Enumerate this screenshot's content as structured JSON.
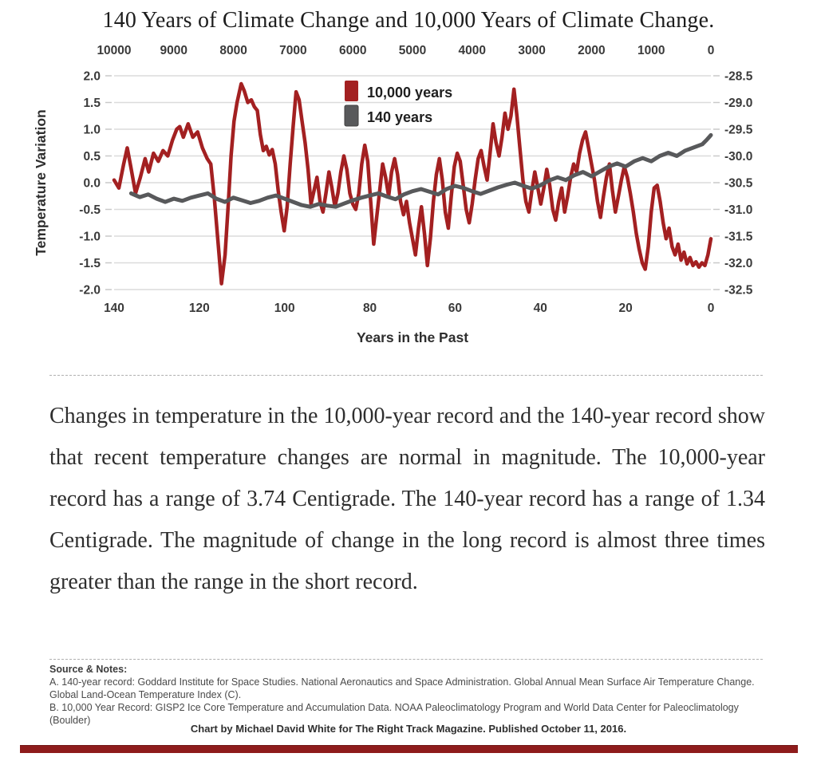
{
  "title": "140 Years of Climate Change and 10,000 Years of Climate Change.",
  "chart_data": {
    "type": "line",
    "top_axis_ticks": [
      "10000",
      "9000",
      "8000",
      "7000",
      "6000",
      "5000",
      "4000",
      "3000",
      "2000",
      "1000",
      "0"
    ],
    "bottom_axis_ticks": [
      "140",
      "120",
      "100",
      "80",
      "60",
      "40",
      "20",
      "0"
    ],
    "left_axis": {
      "title": "Temperature Variation",
      "ticks": [
        "2.0",
        "1.5",
        "1.0",
        "0.5",
        "0.0",
        "-0.5",
        "-1.0",
        "-1.5",
        "-2.0"
      ],
      "ylim": [
        -2.0,
        2.0
      ]
    },
    "right_axis": {
      "ticks": [
        "-28.5",
        "-29.0",
        "-29.5",
        "-30.0",
        "-30.5",
        "-31.0",
        "-31.5",
        "-32.0",
        "-32.5"
      ],
      "ylim": [
        -32.5,
        -28.5
      ]
    },
    "xlabel": "Years in the Past",
    "grid": "horizontal",
    "legend_position": "top-center-inside",
    "legend": [
      {
        "label": "10,000 years",
        "color": "#A32021"
      },
      {
        "label": "140 years",
        "color": "#58595B"
      }
    ],
    "series": [
      {
        "name": "10,000 years",
        "color": "#A32021",
        "stroke_width": 4.5,
        "axis": "top",
        "domain": [
          10000,
          0
        ],
        "points": [
          [
            10000,
            0.05
          ],
          [
            9920,
            -0.1
          ],
          [
            9840,
            0.35
          ],
          [
            9780,
            0.65
          ],
          [
            9720,
            0.3
          ],
          [
            9640,
            -0.2
          ],
          [
            9560,
            0.1
          ],
          [
            9480,
            0.45
          ],
          [
            9420,
            0.2
          ],
          [
            9340,
            0.55
          ],
          [
            9260,
            0.4
          ],
          [
            9180,
            0.6
          ],
          [
            9100,
            0.5
          ],
          [
            9020,
            0.8
          ],
          [
            8950,
            1.0
          ],
          [
            8900,
            1.05
          ],
          [
            8840,
            0.85
          ],
          [
            8760,
            1.1
          ],
          [
            8680,
            0.85
          ],
          [
            8600,
            0.95
          ],
          [
            8520,
            0.65
          ],
          [
            8440,
            0.45
          ],
          [
            8380,
            0.35
          ],
          [
            8320,
            -0.3
          ],
          [
            8260,
            -1.1
          ],
          [
            8200,
            -1.89
          ],
          [
            8140,
            -1.35
          ],
          [
            8090,
            -0.45
          ],
          [
            8040,
            0.5
          ],
          [
            7990,
            1.15
          ],
          [
            7940,
            1.5
          ],
          [
            7870,
            1.85
          ],
          [
            7820,
            1.72
          ],
          [
            7760,
            1.5
          ],
          [
            7700,
            1.55
          ],
          [
            7650,
            1.42
          ],
          [
            7600,
            1.35
          ],
          [
            7550,
            0.9
          ],
          [
            7500,
            0.6
          ],
          [
            7450,
            0.68
          ],
          [
            7400,
            0.52
          ],
          [
            7350,
            0.62
          ],
          [
            7300,
            0.35
          ],
          [
            7250,
            -0.15
          ],
          [
            7200,
            -0.55
          ],
          [
            7150,
            -0.9
          ],
          [
            7100,
            -0.45
          ],
          [
            7050,
            0.35
          ],
          [
            7000,
            1.05
          ],
          [
            6950,
            1.7
          ],
          [
            6900,
            1.55
          ],
          [
            6850,
            1.15
          ],
          [
            6800,
            0.75
          ],
          [
            6750,
            0.25
          ],
          [
            6700,
            -0.4
          ],
          [
            6650,
            -0.15
          ],
          [
            6600,
            0.1
          ],
          [
            6550,
            -0.35
          ],
          [
            6500,
            -0.55
          ],
          [
            6450,
            -0.2
          ],
          [
            6400,
            0.2
          ],
          [
            6350,
            -0.1
          ],
          [
            6300,
            -0.45
          ],
          [
            6250,
            -0.2
          ],
          [
            6200,
            0.2
          ],
          [
            6150,
            0.5
          ],
          [
            6100,
            0.25
          ],
          [
            6050,
            -0.2
          ],
          [
            6000,
            -0.4
          ],
          [
            5950,
            -0.5
          ],
          [
            5900,
            -0.2
          ],
          [
            5850,
            0.35
          ],
          [
            5800,
            0.7
          ],
          [
            5750,
            0.4
          ],
          [
            5700,
            -0.35
          ],
          [
            5650,
            -1.15
          ],
          [
            5600,
            -0.65
          ],
          [
            5550,
            -0.15
          ],
          [
            5500,
            0.35
          ],
          [
            5450,
            0.1
          ],
          [
            5400,
            -0.25
          ],
          [
            5350,
            0.2
          ],
          [
            5300,
            0.45
          ],
          [
            5250,
            0.15
          ],
          [
            5200,
            -0.35
          ],
          [
            5150,
            -0.6
          ],
          [
            5100,
            -0.35
          ],
          [
            5050,
            -0.75
          ],
          [
            5000,
            -1.05
          ],
          [
            4950,
            -1.35
          ],
          [
            4900,
            -0.85
          ],
          [
            4850,
            -0.45
          ],
          [
            4800,
            -0.95
          ],
          [
            4750,
            -1.55
          ],
          [
            4700,
            -1.05
          ],
          [
            4650,
            -0.35
          ],
          [
            4600,
            0.15
          ],
          [
            4550,
            0.45
          ],
          [
            4500,
            0.05
          ],
          [
            4450,
            -0.55
          ],
          [
            4400,
            -0.85
          ],
          [
            4350,
            -0.25
          ],
          [
            4300,
            0.3
          ],
          [
            4250,
            0.55
          ],
          [
            4200,
            0.4
          ],
          [
            4150,
            -0.05
          ],
          [
            4100,
            -0.5
          ],
          [
            4050,
            -0.75
          ],
          [
            4000,
            -0.4
          ],
          [
            3950,
            0.05
          ],
          [
            3900,
            0.45
          ],
          [
            3850,
            0.6
          ],
          [
            3800,
            0.3
          ],
          [
            3750,
            0.05
          ],
          [
            3700,
            0.55
          ],
          [
            3650,
            1.1
          ],
          [
            3600,
            0.75
          ],
          [
            3550,
            0.5
          ],
          [
            3500,
            0.85
          ],
          [
            3450,
            1.3
          ],
          [
            3400,
            1.0
          ],
          [
            3350,
            1.25
          ],
          [
            3300,
            1.75
          ],
          [
            3250,
            1.25
          ],
          [
            3200,
            0.65
          ],
          [
            3150,
            0.05
          ],
          [
            3100,
            -0.35
          ],
          [
            3050,
            -0.55
          ],
          [
            3000,
            -0.15
          ],
          [
            2950,
            0.2
          ],
          [
            2900,
            -0.1
          ],
          [
            2850,
            -0.4
          ],
          [
            2800,
            -0.1
          ],
          [
            2750,
            0.25
          ],
          [
            2700,
            -0.05
          ],
          [
            2650,
            -0.5
          ],
          [
            2600,
            -0.7
          ],
          [
            2550,
            -0.35
          ],
          [
            2500,
            -0.1
          ],
          [
            2450,
            -0.55
          ],
          [
            2400,
            -0.25
          ],
          [
            2350,
            0.1
          ],
          [
            2300,
            0.35
          ],
          [
            2250,
            0.2
          ],
          [
            2200,
            0.55
          ],
          [
            2150,
            0.8
          ],
          [
            2100,
            0.95
          ],
          [
            2050,
            0.65
          ],
          [
            2000,
            0.35
          ],
          [
            1950,
            0.05
          ],
          [
            1900,
            -0.35
          ],
          [
            1850,
            -0.65
          ],
          [
            1800,
            -0.25
          ],
          [
            1750,
            0.1
          ],
          [
            1700,
            0.35
          ],
          [
            1650,
            -0.15
          ],
          [
            1600,
            -0.55
          ],
          [
            1550,
            -0.25
          ],
          [
            1500,
            0.05
          ],
          [
            1450,
            0.3
          ],
          [
            1400,
            0.1
          ],
          [
            1350,
            -0.2
          ],
          [
            1300,
            -0.55
          ],
          [
            1250,
            -0.95
          ],
          [
            1200,
            -1.25
          ],
          [
            1150,
            -1.5
          ],
          [
            1100,
            -1.62
          ],
          [
            1050,
            -1.2
          ],
          [
            1000,
            -0.55
          ],
          [
            950,
            -0.1
          ],
          [
            900,
            -0.05
          ],
          [
            850,
            -0.35
          ],
          [
            800,
            -0.75
          ],
          [
            750,
            -1.05
          ],
          [
            700,
            -0.85
          ],
          [
            650,
            -1.2
          ],
          [
            600,
            -1.35
          ],
          [
            550,
            -1.15
          ],
          [
            500,
            -1.45
          ],
          [
            450,
            -1.3
          ],
          [
            400,
            -1.52
          ],
          [
            350,
            -1.4
          ],
          [
            300,
            -1.55
          ],
          [
            250,
            -1.48
          ],
          [
            200,
            -1.58
          ],
          [
            150,
            -1.5
          ],
          [
            100,
            -1.55
          ],
          [
            50,
            -1.35
          ],
          [
            0,
            -1.05
          ]
        ]
      },
      {
        "name": "140 years",
        "color": "#58595B",
        "stroke_width": 5,
        "axis": "bottom",
        "domain": [
          140,
          0
        ],
        "points": [
          [
            136,
            -0.2
          ],
          [
            134,
            -0.27
          ],
          [
            132,
            -0.22
          ],
          [
            130,
            -0.3
          ],
          [
            128,
            -0.36
          ],
          [
            126,
            -0.3
          ],
          [
            124,
            -0.34
          ],
          [
            122,
            -0.28
          ],
          [
            120,
            -0.24
          ],
          [
            118,
            -0.2
          ],
          [
            116,
            -0.3
          ],
          [
            114,
            -0.36
          ],
          [
            112,
            -0.28
          ],
          [
            110,
            -0.33
          ],
          [
            108,
            -0.38
          ],
          [
            106,
            -0.34
          ],
          [
            104,
            -0.28
          ],
          [
            102,
            -0.24
          ],
          [
            100,
            -0.3
          ],
          [
            98,
            -0.36
          ],
          [
            96,
            -0.42
          ],
          [
            94,
            -0.45
          ],
          [
            92,
            -0.4
          ],
          [
            90,
            -0.43
          ],
          [
            88,
            -0.45
          ],
          [
            86,
            -0.39
          ],
          [
            84,
            -0.33
          ],
          [
            82,
            -0.28
          ],
          [
            80,
            -0.24
          ],
          [
            78,
            -0.2
          ],
          [
            76,
            -0.26
          ],
          [
            74,
            -0.31
          ],
          [
            72,
            -0.22
          ],
          [
            70,
            -0.16
          ],
          [
            68,
            -0.12
          ],
          [
            66,
            -0.17
          ],
          [
            64,
            -0.22
          ],
          [
            62,
            -0.12
          ],
          [
            60,
            -0.06
          ],
          [
            58,
            -0.1
          ],
          [
            56,
            -0.16
          ],
          [
            54,
            -0.21
          ],
          [
            52,
            -0.15
          ],
          [
            50,
            -0.09
          ],
          [
            48,
            -0.04
          ],
          [
            46,
            0.0
          ],
          [
            44,
            -0.06
          ],
          [
            42,
            -0.11
          ],
          [
            40,
            -0.05
          ],
          [
            38,
            0.04
          ],
          [
            36,
            0.1
          ],
          [
            34,
            0.05
          ],
          [
            32,
            0.14
          ],
          [
            30,
            0.2
          ],
          [
            28,
            0.12
          ],
          [
            26,
            0.21
          ],
          [
            24,
            0.3
          ],
          [
            22,
            0.36
          ],
          [
            20,
            0.3
          ],
          [
            18,
            0.4
          ],
          [
            16,
            0.46
          ],
          [
            14,
            0.4
          ],
          [
            12,
            0.5
          ],
          [
            10,
            0.56
          ],
          [
            8,
            0.5
          ],
          [
            6,
            0.6
          ],
          [
            4,
            0.66
          ],
          [
            2,
            0.72
          ],
          [
            1,
            0.8
          ],
          [
            0,
            0.89
          ]
        ]
      }
    ]
  },
  "body_paragraph": "Changes in temperature in the 10,000-year record and the 140-year record show that recent temperature changes are normal in magnitude. The 10,000-year record has a range of 3.74 Centigrade. The 140-year record has a range of 1.34 Centigrade. The magnitude of change in the long record is almost three times greater than the range in the short record.",
  "source_notes": {
    "heading": "Source & Notes:",
    "note_a": "A. 140-year record: Goddard Institute for Space Studies. National Aeronautics and Space Administration. Global Annual Mean Surface Air Temperature Change. Global Land-Ocean Temperature Index (C).",
    "note_b": "B. 10,000 Year Record: GISP2 Ice Core Temperature and Accumulation Data. NOAA Paleoclimatology Program and World Data Center for Paleoclimatology (Boulder)"
  },
  "footer_credit": "Chart by Michael David White for The Right Track Magazine. Published October 11, 2016.",
  "colors": {
    "series_red": "#A32021",
    "series_gray": "#58595B",
    "gridline": "#DBDBDB",
    "tick_text": "#3a3a3a",
    "footer_bar": "#8E1C1C"
  }
}
